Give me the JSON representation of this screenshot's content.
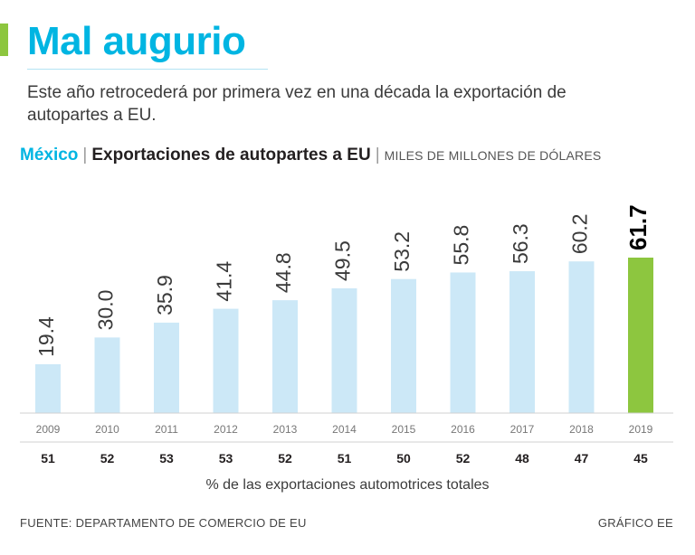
{
  "header": {
    "title": "Mal augurio",
    "subtitle": "Este año retrocederá por primera vez en una década la exportación de autopartes a EU."
  },
  "chart_header": {
    "country": "México",
    "separator": "|",
    "title": "Exportaciones de autopartes a EU",
    "units": "MILES DE MILLONES DE DÓLARES"
  },
  "colors": {
    "bar": "#cce8f7",
    "highlight_bar": "#8dc63f",
    "accent": "#00b5e2",
    "text": "#231f20",
    "axis": "#d0d0d0"
  },
  "chart_data": {
    "type": "bar",
    "title": "Exportaciones de autopartes a EU",
    "ylabel": "Miles de millones de dólares",
    "xlabel": "",
    "categories": [
      "2009",
      "2010",
      "2011",
      "2012",
      "2013",
      "2014",
      "2015",
      "2016",
      "2017",
      "2018",
      "2019"
    ],
    "values": [
      19.4,
      30.0,
      35.9,
      41.4,
      44.8,
      49.5,
      53.2,
      55.8,
      56.3,
      60.2,
      61.7
    ],
    "value_labels": [
      "19.4",
      "30.0",
      "35.9",
      "41.4",
      "44.8",
      "49.5",
      "53.2",
      "55.8",
      "56.3",
      "60.2",
      "61.7"
    ],
    "highlight_index": 10,
    "ylim": [
      0,
      61.7
    ],
    "grid": false,
    "secondary_row": {
      "label": "% de las exportaciones automotrices totales",
      "values": [
        "51",
        "52",
        "53",
        "53",
        "52",
        "51",
        "50",
        "52",
        "48",
        "47",
        "45"
      ]
    }
  },
  "footer": {
    "source": "FUENTE: DEPARTAMENTO DE COMERCIO DE EU",
    "credit": "GRÁFICO EE"
  }
}
